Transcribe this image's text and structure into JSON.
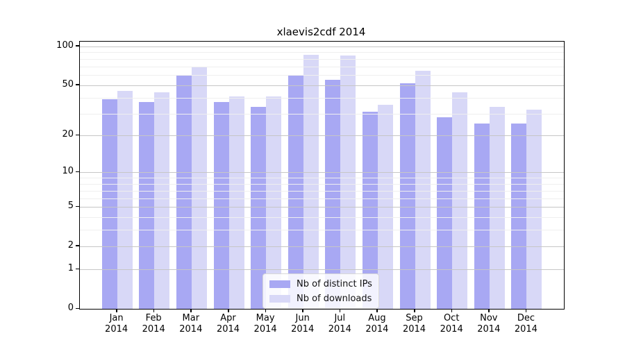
{
  "title": "xlaevis2cdf 2014",
  "legend": {
    "items": [
      {
        "label": "Nb of distinct IPs",
        "color": "#a8a8f3"
      },
      {
        "label": "Nb of downloads",
        "color": "#d8d8f7"
      }
    ],
    "position": "lower center"
  },
  "y_axis": {
    "tick_labels": [
      "100",
      "50",
      "20",
      "10",
      "5",
      "2",
      "1",
      "0"
    ]
  },
  "x_axis": {
    "year": "2014",
    "months": [
      "Jan",
      "Feb",
      "Mar",
      "Apr",
      "May",
      "Jun",
      "Jul",
      "Aug",
      "Sep",
      "Oct",
      "Nov",
      "Dec"
    ]
  },
  "chart_data": {
    "type": "bar",
    "title": "xlaevis2cdf 2014",
    "categories": [
      "Jan 2014",
      "Feb 2014",
      "Mar 2014",
      "Apr 2014",
      "May 2014",
      "Jun 2014",
      "Jul 2014",
      "Aug 2014",
      "Sep 2014",
      "Oct 2014",
      "Nov 2014",
      "Dec 2014"
    ],
    "series": [
      {
        "name": "Nb of distinct IPs",
        "color": "#a8a8f3",
        "values": [
          39,
          37,
          60,
          37,
          34,
          60,
          55,
          31,
          52,
          28,
          25,
          25
        ]
      },
      {
        "name": "Nb of downloads",
        "color": "#d8d8f7",
        "values": [
          45,
          44,
          69,
          41,
          41,
          86,
          85,
          35,
          65,
          44,
          34,
          32
        ]
      }
    ],
    "yscale": "log1p",
    "yticks": [
      0,
      1,
      2,
      5,
      10,
      20,
      50,
      100
    ],
    "minor_gridlines": [
      3,
      4,
      6,
      7,
      8,
      9,
      30,
      40,
      60,
      70,
      80,
      90
    ],
    "ylim": [
      0,
      108.6
    ],
    "grid": true,
    "grid_over_bars": true,
    "legend_position": "lower center",
    "colors": {
      "major_grid": "#c6c6c6",
      "minor_grid": "#efefef",
      "axis": "#000000"
    }
  }
}
